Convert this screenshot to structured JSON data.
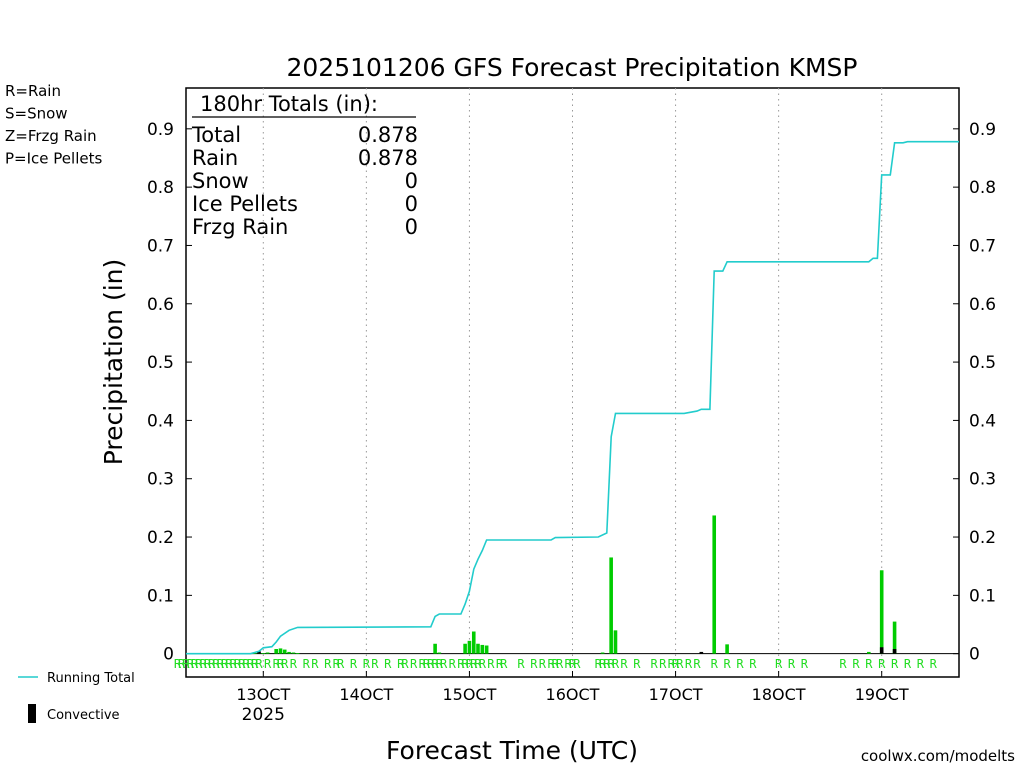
{
  "chart_data": {
    "type": "bar",
    "title": "2025101206 GFS Forecast Precipitation KMSP",
    "ylabel": "Precipitation (in)",
    "xlabel": "Forecast Time (UTC)",
    "ylim": [
      -0.04,
      0.97
    ],
    "yticks": [
      0,
      0.1,
      0.2,
      0.3,
      0.4,
      0.5,
      0.6,
      0.7,
      0.8,
      0.9
    ],
    "ytick_labels": [
      "0",
      "0.1",
      "0.2",
      "0.3",
      "0.4",
      "0.5",
      "0.6",
      "0.7",
      "0.8",
      "0.9"
    ],
    "xlim_day": [
      12.25,
      19.75
    ],
    "xticks_day": [
      13,
      14,
      15,
      16,
      17,
      18,
      19
    ],
    "xtick_labels": [
      "13OCT",
      "14OCT",
      "15OCT",
      "16OCT",
      "17OCT",
      "18OCT",
      "19OCT"
    ],
    "year_label": "2025",
    "legend_types": [
      "R=Rain",
      "S=Snow",
      "Z=Frzg Rain",
      "P=Ice Pellets"
    ],
    "legend_colors": [
      "#22dd22",
      "#3344ee",
      "#ff8833",
      "#ee1188"
    ],
    "legend_lines": [
      "Running Total",
      "Convective"
    ],
    "line_color": "#22cccc",
    "bar_color": "#00cc00",
    "conv_color": "#000000",
    "credit": "coolwx.com/modelts",
    "totals": {
      "header": "180hr Totals (in):",
      "rows": [
        {
          "label": "Total",
          "value": "0.878"
        },
        {
          "label": "Rain",
          "value": "0.878"
        },
        {
          "label": "Snow",
          "value": "0"
        },
        {
          "label": "Ice Pellets",
          "value": "0"
        },
        {
          "label": "Frzg Rain",
          "value": "0"
        }
      ]
    },
    "precip_bars": [
      {
        "day": 12.917,
        "value": 0.001
      },
      {
        "day": 12.958,
        "value": 0.002
      },
      {
        "day": 13.0,
        "value": 0.001
      },
      {
        "day": 13.042,
        "value": 0.002
      },
      {
        "day": 13.125,
        "value": 0.008
      },
      {
        "day": 13.167,
        "value": 0.009
      },
      {
        "day": 13.208,
        "value": 0.007
      },
      {
        "day": 13.25,
        "value": 0.003
      },
      {
        "day": 13.292,
        "value": 0.002
      },
      {
        "day": 13.333,
        "value": 0.001
      },
      {
        "day": 14.667,
        "value": 0.017
      },
      {
        "day": 14.708,
        "value": 0.002
      },
      {
        "day": 14.958,
        "value": 0.017
      },
      {
        "day": 15.0,
        "value": 0.022
      },
      {
        "day": 15.042,
        "value": 0.038
      },
      {
        "day": 15.083,
        "value": 0.017
      },
      {
        "day": 15.125,
        "value": 0.015
      },
      {
        "day": 15.167,
        "value": 0.014
      },
      {
        "day": 16.292,
        "value": 0.002
      },
      {
        "day": 16.375,
        "value": 0.165
      },
      {
        "day": 16.417,
        "value": 0.04
      },
      {
        "day": 17.375,
        "value": 0.237
      },
      {
        "day": 17.5,
        "value": 0.016
      },
      {
        "day": 18.875,
        "value": 0.003
      },
      {
        "day": 19.0,
        "value": 0.143
      },
      {
        "day": 19.125,
        "value": 0.055
      }
    ],
    "convective_bars": [
      {
        "day": 12.958,
        "value": 0.004
      },
      {
        "day": 17.25,
        "value": 0.003
      },
      {
        "day": 19.0,
        "value": 0.011
      },
      {
        "day": 19.125,
        "value": 0.008
      }
    ],
    "running_total": [
      {
        "day": 12.25,
        "value": 0.0
      },
      {
        "day": 12.875,
        "value": 0.0
      },
      {
        "day": 12.958,
        "value": 0.004
      },
      {
        "day": 13.0,
        "value": 0.01
      },
      {
        "day": 13.083,
        "value": 0.012
      },
      {
        "day": 13.125,
        "value": 0.02
      },
      {
        "day": 13.167,
        "value": 0.03
      },
      {
        "day": 13.25,
        "value": 0.04
      },
      {
        "day": 13.333,
        "value": 0.045
      },
      {
        "day": 14.625,
        "value": 0.046
      },
      {
        "day": 14.667,
        "value": 0.064
      },
      {
        "day": 14.708,
        "value": 0.068
      },
      {
        "day": 14.917,
        "value": 0.068
      },
      {
        "day": 14.958,
        "value": 0.085
      },
      {
        "day": 15.0,
        "value": 0.107
      },
      {
        "day": 15.042,
        "value": 0.145
      },
      {
        "day": 15.083,
        "value": 0.162
      },
      {
        "day": 15.125,
        "value": 0.177
      },
      {
        "day": 15.167,
        "value": 0.195
      },
      {
        "day": 15.792,
        "value": 0.195
      },
      {
        "day": 15.833,
        "value": 0.199
      },
      {
        "day": 16.25,
        "value": 0.2
      },
      {
        "day": 16.333,
        "value": 0.207
      },
      {
        "day": 16.375,
        "value": 0.372
      },
      {
        "day": 16.417,
        "value": 0.412
      },
      {
        "day": 17.083,
        "value": 0.412
      },
      {
        "day": 17.208,
        "value": 0.416
      },
      {
        "day": 17.25,
        "value": 0.419
      },
      {
        "day": 17.333,
        "value": 0.419
      },
      {
        "day": 17.375,
        "value": 0.656
      },
      {
        "day": 17.458,
        "value": 0.656
      },
      {
        "day": 17.5,
        "value": 0.672
      },
      {
        "day": 18.875,
        "value": 0.672
      },
      {
        "day": 18.917,
        "value": 0.678
      },
      {
        "day": 18.958,
        "value": 0.678
      },
      {
        "day": 19.0,
        "value": 0.821
      },
      {
        "day": 19.083,
        "value": 0.821
      },
      {
        "day": 19.125,
        "value": 0.876
      },
      {
        "day": 19.208,
        "value": 0.876
      },
      {
        "day": 19.25,
        "value": 0.878
      },
      {
        "day": 19.75,
        "value": 0.878
      }
    ],
    "ptype_marks": [
      {
        "day": 12.167,
        "code": "R"
      },
      {
        "day": 12.208,
        "code": "R"
      },
      {
        "day": 12.25,
        "code": "R"
      },
      {
        "day": 12.292,
        "code": "R"
      },
      {
        "day": 12.333,
        "code": "R"
      },
      {
        "day": 12.375,
        "code": "R"
      },
      {
        "day": 12.417,
        "code": "R"
      },
      {
        "day": 12.458,
        "code": "R"
      },
      {
        "day": 12.5,
        "code": "R"
      },
      {
        "day": 12.542,
        "code": "R"
      },
      {
        "day": 12.583,
        "code": "R"
      },
      {
        "day": 12.625,
        "code": "R"
      },
      {
        "day": 12.667,
        "code": "R"
      },
      {
        "day": 12.708,
        "code": "R"
      },
      {
        "day": 12.75,
        "code": "R"
      },
      {
        "day": 12.792,
        "code": "R"
      },
      {
        "day": 12.833,
        "code": "R"
      },
      {
        "day": 12.875,
        "code": "R"
      },
      {
        "day": 12.917,
        "code": "R"
      },
      {
        "day": 12.958,
        "code": "R"
      },
      {
        "day": 13.042,
        "code": "R"
      },
      {
        "day": 13.125,
        "code": "R"
      },
      {
        "day": 13.167,
        "code": "R"
      },
      {
        "day": 13.208,
        "code": "R"
      },
      {
        "day": 13.292,
        "code": "R"
      },
      {
        "day": 13.417,
        "code": "R"
      },
      {
        "day": 13.5,
        "code": "R"
      },
      {
        "day": 13.625,
        "code": "R"
      },
      {
        "day": 13.708,
        "code": "R"
      },
      {
        "day": 13.75,
        "code": "R"
      },
      {
        "day": 13.875,
        "code": "R"
      },
      {
        "day": 14.0,
        "code": "R"
      },
      {
        "day": 14.083,
        "code": "R"
      },
      {
        "day": 14.208,
        "code": "R"
      },
      {
        "day": 14.333,
        "code": "R"
      },
      {
        "day": 14.375,
        "code": "R"
      },
      {
        "day": 14.458,
        "code": "R"
      },
      {
        "day": 14.542,
        "code": "R"
      },
      {
        "day": 14.583,
        "code": "R"
      },
      {
        "day": 14.625,
        "code": "R"
      },
      {
        "day": 14.667,
        "code": "R"
      },
      {
        "day": 14.708,
        "code": "R"
      },
      {
        "day": 14.75,
        "code": "R"
      },
      {
        "day": 14.833,
        "code": "R"
      },
      {
        "day": 14.917,
        "code": "R"
      },
      {
        "day": 14.958,
        "code": "R"
      },
      {
        "day": 15.0,
        "code": "R"
      },
      {
        "day": 15.042,
        "code": "R"
      },
      {
        "day": 15.083,
        "code": "R"
      },
      {
        "day": 15.125,
        "code": "R"
      },
      {
        "day": 15.208,
        "code": "R"
      },
      {
        "day": 15.292,
        "code": "R"
      },
      {
        "day": 15.333,
        "code": "R"
      },
      {
        "day": 15.5,
        "code": "R"
      },
      {
        "day": 15.625,
        "code": "R"
      },
      {
        "day": 15.708,
        "code": "R"
      },
      {
        "day": 15.792,
        "code": "R"
      },
      {
        "day": 15.833,
        "code": "R"
      },
      {
        "day": 15.875,
        "code": "R"
      },
      {
        "day": 15.958,
        "code": "R"
      },
      {
        "day": 16.0,
        "code": "R"
      },
      {
        "day": 16.042,
        "code": "R"
      },
      {
        "day": 16.25,
        "code": "R"
      },
      {
        "day": 16.292,
        "code": "R"
      },
      {
        "day": 16.333,
        "code": "R"
      },
      {
        "day": 16.375,
        "code": "R"
      },
      {
        "day": 16.417,
        "code": "R"
      },
      {
        "day": 16.5,
        "code": "R"
      },
      {
        "day": 16.625,
        "code": "R"
      },
      {
        "day": 16.792,
        "code": "R"
      },
      {
        "day": 16.875,
        "code": "R"
      },
      {
        "day": 16.958,
        "code": "R"
      },
      {
        "day": 17.0,
        "code": "R"
      },
      {
        "day": 17.042,
        "code": "R"
      },
      {
        "day": 17.125,
        "code": "R"
      },
      {
        "day": 17.208,
        "code": "R"
      },
      {
        "day": 17.375,
        "code": "R"
      },
      {
        "day": 17.5,
        "code": "R"
      },
      {
        "day": 17.625,
        "code": "R"
      },
      {
        "day": 17.75,
        "code": "R"
      },
      {
        "day": 18.0,
        "code": "R"
      },
      {
        "day": 18.125,
        "code": "R"
      },
      {
        "day": 18.25,
        "code": "R"
      },
      {
        "day": 18.625,
        "code": "R"
      },
      {
        "day": 18.75,
        "code": "R"
      },
      {
        "day": 18.875,
        "code": "R"
      },
      {
        "day": 19.0,
        "code": "R"
      },
      {
        "day": 19.125,
        "code": "R"
      },
      {
        "day": 19.25,
        "code": "R"
      },
      {
        "day": 19.375,
        "code": "R"
      },
      {
        "day": 19.5,
        "code": "R"
      }
    ]
  }
}
